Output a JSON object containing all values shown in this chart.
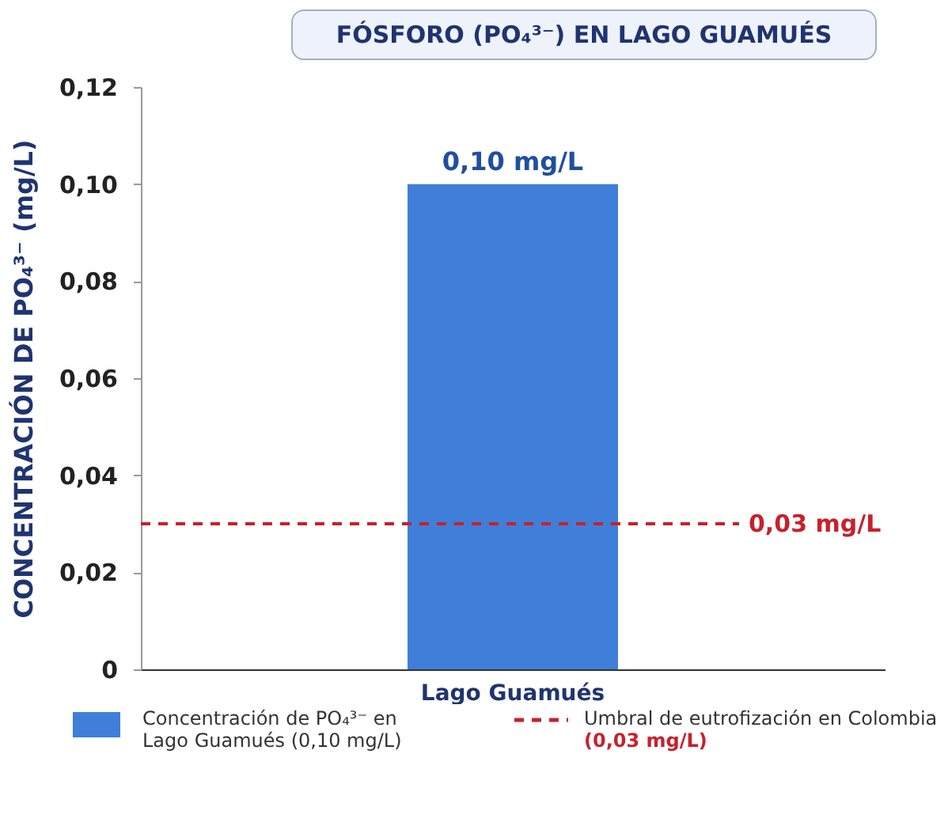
{
  "chart_data": {
    "type": "bar",
    "title": "FÓSFORO (PO₄³⁻) EN LAGO GUAMUÉS",
    "ylabel": "CONCENTRACIÓN DE PO₄³⁻ (mg/L)",
    "categories": [
      "Lago Guamués"
    ],
    "series": [
      {
        "name": "Concentración de PO₄³⁻ en Lago Guamués (0,10 mg/L)",
        "color": "#3f7fd9",
        "values": [
          0.1
        ],
        "value_labels": [
          "0,10 mg/L"
        ]
      }
    ],
    "ylim": [
      0,
      0.12
    ],
    "yticks": [
      0,
      {
        "value": 0.02,
        "label": "0,02"
      },
      {
        "value": 0.04,
        "label": "0,04"
      },
      {
        "value": 0.06,
        "label": "0,06"
      },
      {
        "value": 0.08,
        "label": "0,08"
      },
      {
        "value": 0.1,
        "label": "0,10"
      },
      {
        "value": 0.12,
        "label": "0,12"
      }
    ],
    "ref_lines": [
      {
        "axis": "y",
        "value": 0.03,
        "label": "0,03 mg/L",
        "color": "#c8202c",
        "line_style": "dashed"
      }
    ],
    "annotations": [
      "Umbral de eutrofización en Colombia",
      "(0,03 mg/L)"
    ],
    "legend": "bottom"
  }
}
